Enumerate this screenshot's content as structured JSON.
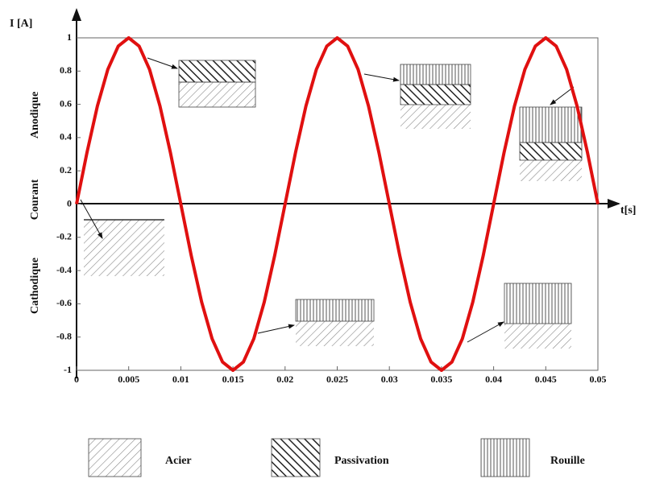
{
  "chart_data": {
    "type": "line",
    "y_label": "I [A]",
    "x_label": "t[s]",
    "side_labels": [
      "Anodique",
      "Courant",
      "Cathodique"
    ],
    "legend_items": [
      "Acier",
      "Passivation",
      "Rouille"
    ],
    "color": "#e01010",
    "x": [
      0,
      0.001,
      0.002,
      0.003,
      0.004,
      0.005,
      0.006,
      0.007,
      0.008,
      0.009,
      0.01,
      0.011,
      0.012,
      0.013,
      0.014,
      0.015,
      0.016,
      0.017,
      0.018,
      0.019,
      0.02,
      0.021,
      0.022,
      0.023,
      0.024,
      0.025,
      0.026,
      0.027,
      0.028,
      0.029,
      0.03,
      0.031,
      0.032,
      0.033,
      0.034,
      0.035,
      0.036,
      0.037,
      0.038,
      0.039,
      0.04,
      0.041,
      0.042,
      0.043,
      0.044,
      0.045,
      0.046,
      0.047,
      0.048,
      0.049,
      0.05
    ],
    "values": [
      0,
      0.31,
      0.59,
      0.81,
      0.95,
      1,
      0.95,
      0.81,
      0.59,
      0.31,
      0,
      -0.31,
      -0.59,
      -0.81,
      -0.95,
      -1,
      -0.95,
      -0.81,
      -0.59,
      -0.31,
      0,
      0.31,
      0.59,
      0.81,
      0.95,
      1,
      0.95,
      0.81,
      0.59,
      0.31,
      0,
      -0.31,
      -0.59,
      -0.81,
      -0.95,
      -1,
      -0.95,
      -0.81,
      -0.59,
      -0.31,
      0,
      0.31,
      0.59,
      0.81,
      0.95,
      1,
      0.95,
      0.81,
      0.59,
      0.31,
      0
    ],
    "xlim": [
      0,
      0.05
    ],
    "ylim": [
      -1,
      1
    ],
    "xticks": [
      0,
      0.005,
      0.01,
      0.015,
      0.02,
      0.025,
      0.03,
      0.035,
      0.04,
      0.045,
      0.05
    ],
    "yticks": [
      -1,
      -0.8,
      -0.6,
      -0.4,
      -0.2,
      0,
      0.2,
      0.4,
      0.6,
      0.8,
      1
    ]
  }
}
